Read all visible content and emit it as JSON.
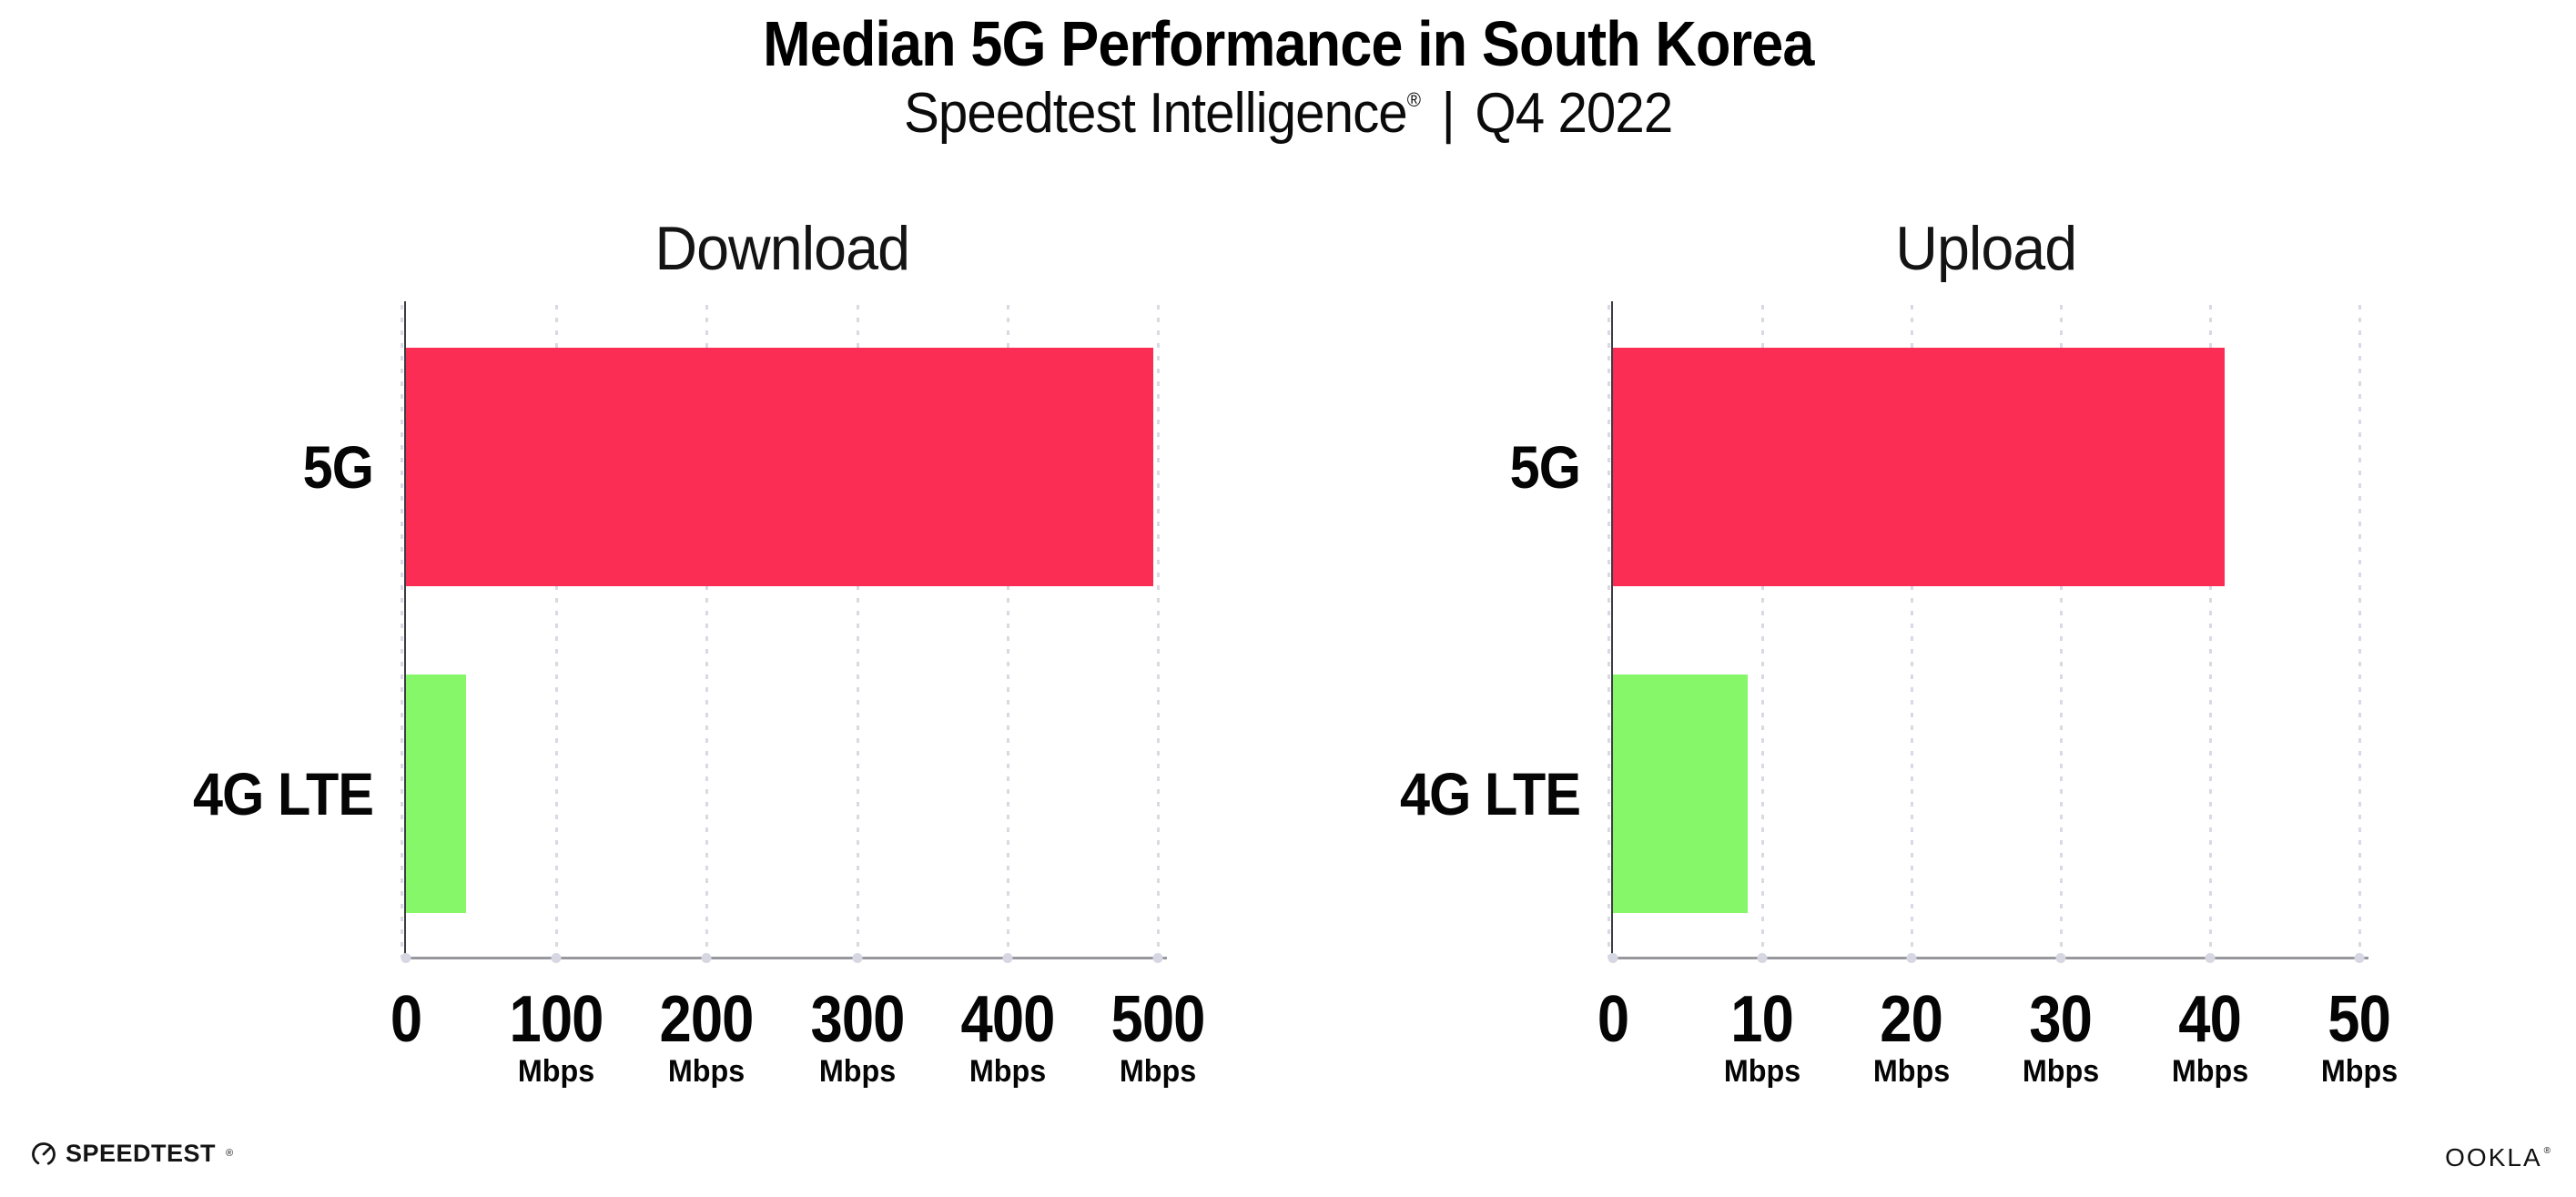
{
  "header": {
    "title": "Median 5G Performance in South Korea",
    "subtitle_brand": "Speedtest Intelligence",
    "subtitle_reg_mark": "®",
    "subtitle_separator": "|",
    "subtitle_period": "Q4 2022"
  },
  "chart_data": [
    {
      "type": "bar",
      "orientation": "horizontal",
      "title": "Download",
      "categories": [
        "5G",
        "4G LTE"
      ],
      "values": [
        497,
        40
      ],
      "unit": "Mbps",
      "xlabel": "",
      "ylabel": "",
      "xlim": [
        0,
        500
      ],
      "x_ticks": [
        0,
        100,
        200,
        300,
        400,
        500
      ],
      "bar_colors": [
        "#fc2d55",
        "#85f768"
      ],
      "grid": "dotted-vertical",
      "legend": "none"
    },
    {
      "type": "bar",
      "orientation": "horizontal",
      "title": "Upload",
      "categories": [
        "5G",
        "4G LTE"
      ],
      "values": [
        41,
        9
      ],
      "unit": "Mbps",
      "xlabel": "",
      "ylabel": "",
      "xlim": [
        0,
        50
      ],
      "x_ticks": [
        0,
        10,
        20,
        30,
        40,
        50
      ],
      "bar_colors": [
        "#fc2d55",
        "#85f768"
      ],
      "grid": "dotted-vertical",
      "legend": "none"
    }
  ],
  "footer": {
    "speedtest_logo_text": "SPEEDTEST",
    "speedtest_reg_mark": "®",
    "ookla_logo_text": "OOKLA",
    "ookla_reg_mark": "®"
  },
  "colors": {
    "bar_5g": "#fc2d55",
    "bar_4g_lte": "#85f768",
    "gridline": "#d9d9e4",
    "x_axis": "#97979d",
    "y_axis": "#3c3c43",
    "text": "#050506",
    "background": "#ffffff"
  }
}
